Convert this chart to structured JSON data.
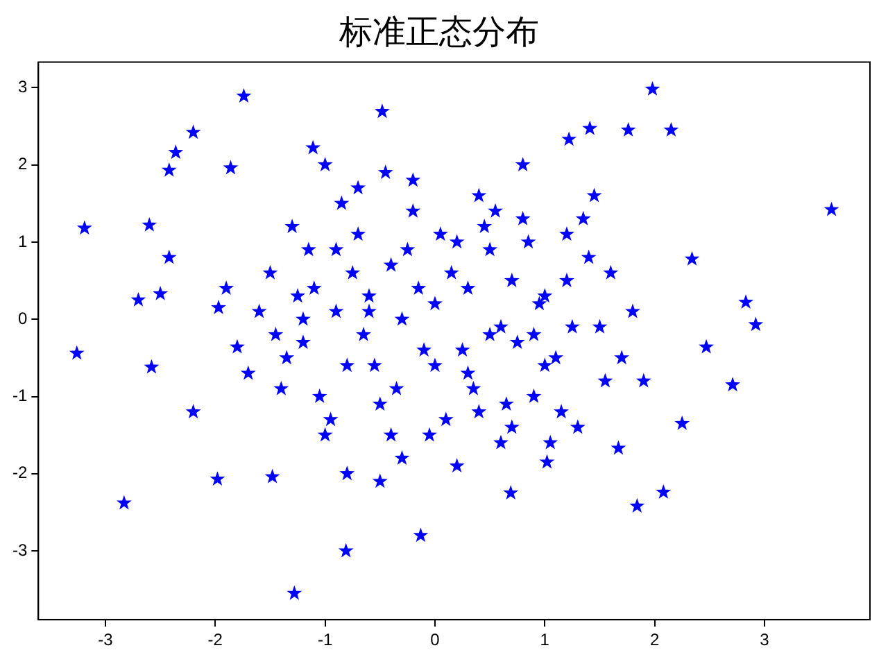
{
  "chart_data": {
    "type": "scatter",
    "title": "标准正态分布",
    "xlim": [
      -3.61,
      3.96
    ],
    "ylim": [
      -3.89,
      3.33
    ],
    "xticks": [
      -3,
      -2,
      -1,
      0,
      1,
      2,
      3
    ],
    "yticks": [
      -3,
      -2,
      -1,
      0,
      1,
      2,
      3
    ],
    "grid": false,
    "legend": false,
    "marker": "star",
    "series": [
      {
        "color": "#0000ff",
        "x": [
          -3.26,
          -3.19,
          -2.83,
          -2.7,
          -2.6,
          -2.58,
          -2.5,
          -2.42,
          -2.36,
          -2.42,
          -2.2,
          -2.2,
          -1.98,
          -1.74,
          -1.86,
          -1.28,
          -0.81,
          -0.13,
          1.98,
          2.15,
          2.08,
          1.84,
          2.71,
          2.83,
          2.92,
          3.61,
          1.76,
          1.22,
          1.41,
          -0.48,
          -1.11,
          -1.48,
          0.69,
          1.02,
          2.47,
          2.25,
          1.67,
          -1.8,
          -1.97,
          2.34,
          -1.5,
          -1.4,
          -1.3,
          -1.2,
          -1.1,
          -1.0,
          -0.9,
          -0.8,
          -0.7,
          -0.6,
          -0.5,
          -0.4,
          -0.3,
          -0.2,
          -0.1,
          0.0,
          0.1,
          0.2,
          0.3,
          0.4,
          0.5,
          0.6,
          0.7,
          0.8,
          0.9,
          1.0,
          1.1,
          1.2,
          1.3,
          1.4,
          1.5,
          1.6,
          -1.45,
          -1.25,
          -1.05,
          -0.85,
          -0.65,
          -0.45,
          -0.25,
          -0.05,
          0.15,
          0.35,
          0.55,
          0.75,
          0.95,
          1.15,
          1.35,
          1.55,
          -1.6,
          -1.35,
          -1.15,
          -0.95,
          -0.75,
          -0.55,
          -0.35,
          -0.15,
          0.05,
          0.25,
          0.45,
          0.65,
          0.85,
          1.05,
          1.25,
          1.45,
          1.7,
          -0.9,
          -0.6,
          -0.3,
          0.0,
          0.3,
          0.6,
          0.9,
          -0.7,
          -0.2,
          0.2,
          0.7,
          -1.2,
          1.2,
          -0.4,
          0.4,
          -1.0,
          1.0,
          0.5,
          -0.5,
          1.8,
          -1.7,
          1.9,
          -1.9,
          0.8,
          -0.8
        ],
        "values": [
          -0.44,
          1.18,
          -2.38,
          0.25,
          1.22,
          -0.62,
          0.33,
          0.8,
          2.16,
          1.93,
          2.42,
          -1.2,
          -2.07,
          2.89,
          1.96,
          -3.55,
          -3.0,
          -2.8,
          2.98,
          2.45,
          -2.24,
          -2.42,
          -0.85,
          0.22,
          -0.07,
          1.42,
          2.45,
          2.33,
          2.47,
          2.69,
          2.22,
          -2.04,
          -2.25,
          -1.85,
          -0.36,
          -1.35,
          -1.67,
          -0.36,
          0.15,
          0.78,
          0.6,
          -0.9,
          1.2,
          -0.3,
          0.4,
          -1.5,
          0.9,
          -0.6,
          1.7,
          0.1,
          -1.1,
          0.7,
          -1.8,
          1.4,
          -0.4,
          0.2,
          -1.3,
          1.0,
          -0.7,
          1.6,
          -0.2,
          -1.6,
          0.5,
          1.3,
          -1.0,
          0.3,
          -0.5,
          1.1,
          -1.4,
          0.8,
          -0.1,
          0.6,
          -0.2,
          0.3,
          -1.0,
          1.5,
          -0.2,
          1.9,
          0.9,
          -1.5,
          0.6,
          -0.9,
          1.4,
          -0.3,
          0.2,
          -1.2,
          1.3,
          -0.8,
          0.1,
          -0.5,
          0.9,
          -1.3,
          0.6,
          -0.6,
          -0.9,
          0.4,
          1.1,
          -0.4,
          1.2,
          -1.1,
          1.0,
          -1.6,
          -0.1,
          1.6,
          -0.5,
          0.1,
          0.3,
          0.0,
          -0.6,
          0.4,
          -0.1,
          -0.2,
          1.1,
          1.8,
          -1.9,
          -1.4,
          0.0,
          0.5,
          -1.5,
          -1.2,
          2.0,
          -0.6,
          0.9,
          -2.1,
          0.1,
          -0.7,
          -0.8,
          0.4,
          2.0,
          -2.0
        ]
      }
    ]
  }
}
